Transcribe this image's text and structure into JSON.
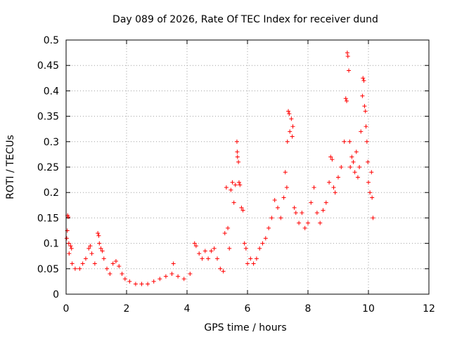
{
  "chart_data": {
    "type": "scatter",
    "title": "Day 089 of 2026, Rate Of TEC Index for receiver dund",
    "xlabel": "GPS time / hours",
    "ylabel": "ROTI / TECUs",
    "xlim": [
      0,
      12
    ],
    "ylim": [
      0,
      0.5
    ],
    "xticks": [
      0,
      2,
      4,
      6,
      8,
      10,
      12
    ],
    "xtick_labels": [
      "0",
      "2",
      "4",
      "6",
      "8",
      "10",
      "12"
    ],
    "yticks": [
      0,
      0.05,
      0.1,
      0.15,
      0.2,
      0.25,
      0.3,
      0.35,
      0.4,
      0.45,
      0.5
    ],
    "ytick_labels": [
      "0",
      "0.05",
      "0.1",
      "0.15",
      "0.2",
      "0.25",
      "0.3",
      "0.35",
      "0.4",
      "0.45",
      "0.5"
    ],
    "grid": true,
    "marker": "+",
    "marker_color": "#ff0000",
    "series": [
      {
        "name": "ROTI",
        "points": [
          [
            0.02,
            0.11
          ],
          [
            0.04,
            0.125
          ],
          [
            0.05,
            0.155
          ],
          [
            0.07,
            0.152
          ],
          [
            0.09,
            0.1
          ],
          [
            0.1,
            0.08
          ],
          [
            0.15,
            0.095
          ],
          [
            0.18,
            0.09
          ],
          [
            0.2,
            0.06
          ],
          [
            0.3,
            0.05
          ],
          [
            0.45,
            0.05
          ],
          [
            0.55,
            0.06
          ],
          [
            0.65,
            0.07
          ],
          [
            0.75,
            0.09
          ],
          [
            0.8,
            0.095
          ],
          [
            0.85,
            0.08
          ],
          [
            0.95,
            0.06
          ],
          [
            1.05,
            0.12
          ],
          [
            1.08,
            0.115
          ],
          [
            1.1,
            0.1
          ],
          [
            1.15,
            0.09
          ],
          [
            1.2,
            0.085
          ],
          [
            1.25,
            0.07
          ],
          [
            1.35,
            0.05
          ],
          [
            1.45,
            0.04
          ],
          [
            1.55,
            0.06
          ],
          [
            1.65,
            0.065
          ],
          [
            1.75,
            0.055
          ],
          [
            1.85,
            0.04
          ],
          [
            1.95,
            0.03
          ],
          [
            2.1,
            0.025
          ],
          [
            2.3,
            0.02
          ],
          [
            2.5,
            0.02
          ],
          [
            2.7,
            0.02
          ],
          [
            2.9,
            0.025
          ],
          [
            3.1,
            0.03
          ],
          [
            3.3,
            0.035
          ],
          [
            3.5,
            0.04
          ],
          [
            3.55,
            0.06
          ],
          [
            3.7,
            0.035
          ],
          [
            3.9,
            0.03
          ],
          [
            4.1,
            0.04
          ],
          [
            4.25,
            0.1
          ],
          [
            4.3,
            0.095
          ],
          [
            4.4,
            0.08
          ],
          [
            4.5,
            0.07
          ],
          [
            4.6,
            0.085
          ],
          [
            4.7,
            0.07
          ],
          [
            4.8,
            0.085
          ],
          [
            4.9,
            0.09
          ],
          [
            5.0,
            0.07
          ],
          [
            5.1,
            0.05
          ],
          [
            5.2,
            0.045
          ],
          [
            5.25,
            0.12
          ],
          [
            5.3,
            0.21
          ],
          [
            5.35,
            0.13
          ],
          [
            5.4,
            0.09
          ],
          [
            5.45,
            0.205
          ],
          [
            5.5,
            0.22
          ],
          [
            5.55,
            0.18
          ],
          [
            5.6,
            0.215
          ],
          [
            5.65,
            0.3
          ],
          [
            5.66,
            0.28
          ],
          [
            5.67,
            0.27
          ],
          [
            5.7,
            0.26
          ],
          [
            5.72,
            0.22
          ],
          [
            5.75,
            0.215
          ],
          [
            5.8,
            0.17
          ],
          [
            5.85,
            0.165
          ],
          [
            5.9,
            0.1
          ],
          [
            5.95,
            0.09
          ],
          [
            6.0,
            0.06
          ],
          [
            6.1,
            0.07
          ],
          [
            6.2,
            0.06
          ],
          [
            6.3,
            0.07
          ],
          [
            6.4,
            0.09
          ],
          [
            6.5,
            0.1
          ],
          [
            6.6,
            0.11
          ],
          [
            6.7,
            0.13
          ],
          [
            6.8,
            0.15
          ],
          [
            6.9,
            0.185
          ],
          [
            7.0,
            0.17
          ],
          [
            7.1,
            0.15
          ],
          [
            7.2,
            0.19
          ],
          [
            7.25,
            0.24
          ],
          [
            7.3,
            0.21
          ],
          [
            7.32,
            0.3
          ],
          [
            7.35,
            0.36
          ],
          [
            7.38,
            0.355
          ],
          [
            7.4,
            0.32
          ],
          [
            7.45,
            0.345
          ],
          [
            7.5,
            0.33
          ],
          [
            7.48,
            0.31
          ],
          [
            7.55,
            0.17
          ],
          [
            7.6,
            0.16
          ],
          [
            7.7,
            0.14
          ],
          [
            7.8,
            0.16
          ],
          [
            7.9,
            0.13
          ],
          [
            8.0,
            0.14
          ],
          [
            8.1,
            0.18
          ],
          [
            8.2,
            0.21
          ],
          [
            8.3,
            0.16
          ],
          [
            8.4,
            0.14
          ],
          [
            8.5,
            0.165
          ],
          [
            8.6,
            0.18
          ],
          [
            8.7,
            0.22
          ],
          [
            8.75,
            0.27
          ],
          [
            8.8,
            0.265
          ],
          [
            8.85,
            0.21
          ],
          [
            8.9,
            0.2
          ],
          [
            9.0,
            0.23
          ],
          [
            9.1,
            0.25
          ],
          [
            9.2,
            0.3
          ],
          [
            9.25,
            0.385
          ],
          [
            9.28,
            0.38
          ],
          [
            9.3,
            0.475
          ],
          [
            9.32,
            0.468
          ],
          [
            9.35,
            0.44
          ],
          [
            9.38,
            0.3
          ],
          [
            9.4,
            0.25
          ],
          [
            9.45,
            0.27
          ],
          [
            9.5,
            0.26
          ],
          [
            9.55,
            0.24
          ],
          [
            9.6,
            0.28
          ],
          [
            9.65,
            0.23
          ],
          [
            9.7,
            0.25
          ],
          [
            9.75,
            0.32
          ],
          [
            9.8,
            0.39
          ],
          [
            9.82,
            0.425
          ],
          [
            9.85,
            0.42
          ],
          [
            9.87,
            0.37
          ],
          [
            9.9,
            0.36
          ],
          [
            9.92,
            0.33
          ],
          [
            9.95,
            0.3
          ],
          [
            9.98,
            0.26
          ],
          [
            10.0,
            0.22
          ],
          [
            10.05,
            0.2
          ],
          [
            10.1,
            0.24
          ],
          [
            10.12,
            0.19
          ],
          [
            10.15,
            0.15
          ]
        ]
      }
    ]
  }
}
